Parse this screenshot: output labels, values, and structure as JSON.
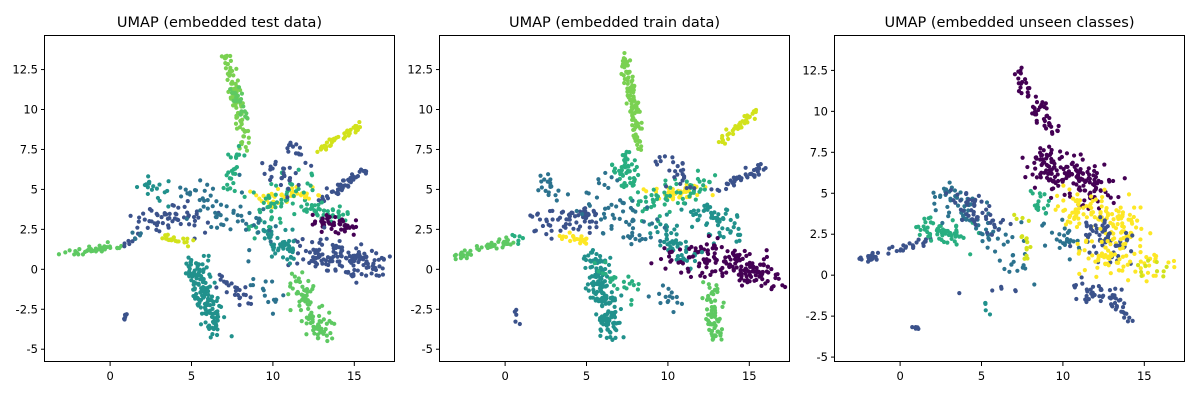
{
  "colors": {
    "viridis": [
      "#440154",
      "#3b528b",
      "#21918c",
      "#5ec962",
      "#7ad151",
      "#fde725"
    ],
    "class_colors": [
      "#440154",
      "#3b528b",
      "#2c728e",
      "#21918c",
      "#28ae80",
      "#5ec962",
      "#7ad151",
      "#d2e21b",
      "#fde725"
    ]
  },
  "chart_data": [
    {
      "type": "scatter",
      "title": "UMAP (embedded test data)",
      "xlim": [
        -4,
        17.5
      ],
      "ylim": [
        -5.8,
        14.6
      ],
      "xticks": [
        0,
        5,
        10,
        15
      ],
      "yticks": [
        -5.0,
        -2.5,
        0.0,
        2.5,
        5.0,
        7.5,
        10.0,
        12.5
      ],
      "grid": false,
      "legend": "none",
      "clusters": [
        {
          "x": [
            -3.2,
            0.8
          ],
          "y": [
            0.9,
            1.5
          ],
          "n": 35,
          "spread": 0.12,
          "color": 5
        },
        {
          "x": [
            0.8,
            1.5
          ],
          "y": [
            1.5,
            2.0
          ],
          "n": 6,
          "spread": 0.15,
          "color": 1
        },
        {
          "x": [
            1.5,
            2.1
          ],
          "y": [
            2.0,
            2.4
          ],
          "n": 5,
          "spread": 0.15,
          "color": 2
        },
        {
          "x": [
            7.1,
            8.4
          ],
          "y": [
            13.4,
            7.5
          ],
          "n": 90,
          "spread": 0.18,
          "color": 6
        },
        {
          "x": [
            7.6,
            8.3
          ],
          "y": [
            11.5,
            9.5
          ],
          "n": 25,
          "spread": 0.15,
          "color": 5
        },
        {
          "x": [
            7.8,
            7.4
          ],
          "y": [
            7.5,
            5.0
          ],
          "n": 25,
          "spread": 0.25,
          "color": 4
        },
        {
          "x": [
            12.8,
            15.4
          ],
          "y": [
            7.5,
            9.0
          ],
          "n": 40,
          "spread": 0.12,
          "color": 7
        },
        {
          "x": [
            13.0,
            15.8
          ],
          "y": [
            4.3,
            6.3
          ],
          "n": 45,
          "spread": 0.18,
          "color": 1
        },
        {
          "x": [
            12.0,
            14.5
          ],
          "y": [
            4.0,
            3.2
          ],
          "n": 40,
          "spread": 0.3,
          "color": 4
        },
        {
          "x": [
            12.5,
            15.0
          ],
          "y": [
            3.0,
            2.8
          ],
          "n": 45,
          "spread": 0.25,
          "color": 0
        },
        {
          "x": [
            12.0,
            16.5
          ],
          "y": [
            1.0,
            0.2
          ],
          "n": 140,
          "spread": 0.5,
          "color": 1
        },
        {
          "x": [
            11.5,
            13.0
          ],
          "y": [
            -0.5,
            -4.4
          ],
          "n": 90,
          "spread": 0.35,
          "color": 5
        },
        {
          "x": [
            5.2,
            6.6
          ],
          "y": [
            0.5,
            -4.1
          ],
          "n": 150,
          "spread": 0.35,
          "color": 3
        },
        {
          "x": [
            6.5,
            8.5
          ],
          "y": [
            -0.5,
            -2.0
          ],
          "n": 25,
          "spread": 0.3,
          "color": 1
        },
        {
          "x": [
            9.5,
            11.5
          ],
          "y": [
            2.5,
            0.5
          ],
          "n": 55,
          "spread": 0.4,
          "color": 3
        },
        {
          "x": [
            9.0,
            12.5
          ],
          "y": [
            4.5,
            4.8
          ],
          "n": 40,
          "spread": 0.3,
          "color": 8
        },
        {
          "x": [
            8.5,
            12.0
          ],
          "y": [
            3.0,
            5.5
          ],
          "n": 60,
          "spread": 0.6,
          "color": 4
        },
        {
          "x": [
            2.0,
            5.5
          ],
          "y": [
            3.0,
            3.2
          ],
          "n": 55,
          "spread": 0.45,
          "color": 1
        },
        {
          "x": [
            2.0,
            3.5
          ],
          "y": [
            5.5,
            4.5
          ],
          "n": 20,
          "spread": 0.3,
          "color": 3
        },
        {
          "x": [
            3.2,
            5.0
          ],
          "y": [
            2.0,
            1.7
          ],
          "n": 20,
          "spread": 0.2,
          "color": 7
        },
        {
          "x": [
            5.0,
            9.5
          ],
          "y": [
            5.0,
            2.0
          ],
          "n": 60,
          "spread": 0.7,
          "color": 2
        },
        {
          "x": [
            9.5,
            11.5
          ],
          "y": [
            7.0,
            5.0
          ],
          "n": 25,
          "spread": 0.4,
          "color": 1
        },
        {
          "x": [
            11.0,
            12.3
          ],
          "y": [
            8.0,
            6.5
          ],
          "n": 15,
          "spread": 0.2,
          "color": 1
        },
        {
          "x": [
            1.0,
            0.9
          ],
          "y": [
            -2.8,
            -3.1
          ],
          "n": 6,
          "spread": 0.08,
          "color": 1
        },
        {
          "x": [
            9.0,
            10.5
          ],
          "y": [
            -1.0,
            -2.5
          ],
          "n": 15,
          "spread": 0.3,
          "color": 2
        }
      ]
    },
    {
      "type": "scatter",
      "title": "UMAP (embedded train data)",
      "xlim": [
        -4,
        17.5
      ],
      "ylim": [
        -5.8,
        14.6
      ],
      "xticks": [
        0,
        5,
        10,
        15
      ],
      "yticks": [
        -5.0,
        -2.5,
        0.0,
        2.5,
        5.0,
        7.5,
        10.0,
        12.5
      ],
      "grid": false,
      "legend": "none",
      "clusters": [
        {
          "x": [
            -3.2,
            0.5
          ],
          "y": [
            0.8,
            1.8
          ],
          "n": 45,
          "spread": 0.12,
          "color": 5
        },
        {
          "x": [
            0.5,
            1.2
          ],
          "y": [
            1.8,
            2.0
          ],
          "n": 6,
          "spread": 0.15,
          "color": 4
        },
        {
          "x": [
            7.3,
            8.3
          ],
          "y": [
            13.4,
            7.5
          ],
          "n": 110,
          "spread": 0.18,
          "color": 6
        },
        {
          "x": [
            7.6,
            7.8
          ],
          "y": [
            7.5,
            5.0
          ],
          "n": 25,
          "spread": 0.3,
          "color": 4
        },
        {
          "x": [
            13.2,
            15.5
          ],
          "y": [
            8.0,
            10.0
          ],
          "n": 40,
          "spread": 0.12,
          "color": 7
        },
        {
          "x": [
            13.0,
            15.8
          ],
          "y": [
            5.0,
            6.4
          ],
          "n": 40,
          "spread": 0.18,
          "color": 1
        },
        {
          "x": [
            11.5,
            14.5
          ],
          "y": [
            4.0,
            2.0
          ],
          "n": 60,
          "spread": 0.5,
          "color": 3
        },
        {
          "x": [
            12.0,
            16.5
          ],
          "y": [
            1.0,
            -0.5
          ],
          "n": 150,
          "spread": 0.5,
          "color": 0
        },
        {
          "x": [
            12.5,
            13.0
          ],
          "y": [
            -1.0,
            -4.4
          ],
          "n": 70,
          "spread": 0.3,
          "color": 5
        },
        {
          "x": [
            5.5,
            6.5
          ],
          "y": [
            1.0,
            -4.0
          ],
          "n": 170,
          "spread": 0.35,
          "color": 3
        },
        {
          "x": [
            6.0,
            8.0
          ],
          "y": [
            0.0,
            -1.5
          ],
          "n": 25,
          "spread": 0.3,
          "color": 4
        },
        {
          "x": [
            9.5,
            11.5
          ],
          "y": [
            2.5,
            0.5
          ],
          "n": 55,
          "spread": 0.4,
          "color": 3
        },
        {
          "x": [
            9.0,
            12.0
          ],
          "y": [
            4.6,
            4.9
          ],
          "n": 45,
          "spread": 0.25,
          "color": 8
        },
        {
          "x": [
            8.5,
            12.5
          ],
          "y": [
            4.0,
            5.5
          ],
          "n": 60,
          "spread": 0.6,
          "color": 4
        },
        {
          "x": [
            2.0,
            5.5
          ],
          "y": [
            2.8,
            3.2
          ],
          "n": 65,
          "spread": 0.4,
          "color": 1
        },
        {
          "x": [
            2.0,
            3.5
          ],
          "y": [
            5.5,
            4.8
          ],
          "n": 20,
          "spread": 0.3,
          "color": 2
        },
        {
          "x": [
            3.5,
            5.0
          ],
          "y": [
            2.0,
            1.8
          ],
          "n": 20,
          "spread": 0.15,
          "color": 8
        },
        {
          "x": [
            5.0,
            9.0
          ],
          "y": [
            5.0,
            2.0
          ],
          "n": 60,
          "spread": 0.7,
          "color": 2
        },
        {
          "x": [
            7.0,
            8.5
          ],
          "y": [
            6.5,
            4.5
          ],
          "n": 25,
          "spread": 0.5,
          "color": 4
        },
        {
          "x": [
            9.5,
            11.5
          ],
          "y": [
            7.0,
            5.5
          ],
          "n": 25,
          "spread": 0.4,
          "color": 1
        },
        {
          "x": [
            9.5,
            12.0
          ],
          "y": [
            1.0,
            0.0
          ],
          "n": 25,
          "spread": 0.5,
          "color": 0
        },
        {
          "x": [
            0.6,
            0.8
          ],
          "y": [
            -2.5,
            -3.5
          ],
          "n": 5,
          "spread": 0.08,
          "color": 1
        },
        {
          "x": [
            9.0,
            11.0
          ],
          "y": [
            -1.0,
            -2.5
          ],
          "n": 15,
          "spread": 0.3,
          "color": 2
        }
      ]
    },
    {
      "type": "scatter",
      "title": "UMAP (embedded unseen classes)",
      "xlim": [
        -4,
        17.5
      ],
      "ylim": [
        -5.3,
        14.6
      ],
      "xticks": [
        0,
        5,
        10,
        15
      ],
      "yticks": [
        -5.0,
        -2.5,
        0.0,
        2.5,
        5.0,
        7.5,
        10.0,
        12.5
      ],
      "grid": false,
      "legend": "none",
      "clusters": [
        {
          "x": [
            -2.5,
            2.0
          ],
          "y": [
            0.9,
            2.2
          ],
          "n": 40,
          "spread": 0.15,
          "color": 1
        },
        {
          "x": [
            1.5,
            4.0
          ],
          "y": [
            2.8,
            2.4
          ],
          "n": 60,
          "spread": 0.45,
          "color": 4
        },
        {
          "x": [
            2.5,
            6.5
          ],
          "y": [
            5.0,
            2.0
          ],
          "n": 70,
          "spread": 0.6,
          "color": 2
        },
        {
          "x": [
            3.5,
            6.0
          ],
          "y": [
            4.5,
            3.0
          ],
          "n": 55,
          "spread": 0.5,
          "color": 1
        },
        {
          "x": [
            6.0,
            7.5
          ],
          "y": [
            1.5,
            0.0
          ],
          "n": 15,
          "spread": 0.4,
          "color": 2
        },
        {
          "x": [
            7.0,
            9.5
          ],
          "y": [
            12.5,
            8.5
          ],
          "n": 55,
          "spread": 0.25,
          "color": 0
        },
        {
          "x": [
            8.5,
            12.5
          ],
          "y": [
            7.0,
            5.0
          ],
          "n": 170,
          "spread": 0.6,
          "color": 0
        },
        {
          "x": [
            9.0,
            11.0
          ],
          "y": [
            3.0,
            1.5
          ],
          "n": 25,
          "spread": 0.5,
          "color": 2
        },
        {
          "x": [
            10.0,
            14.5
          ],
          "y": [
            4.5,
            3.0
          ],
          "n": 120,
          "spread": 0.6,
          "color": 8
        },
        {
          "x": [
            11.0,
            14.0
          ],
          "y": [
            3.0,
            1.5
          ],
          "n": 60,
          "spread": 0.6,
          "color": 1
        },
        {
          "x": [
            11.5,
            15.5
          ],
          "y": [
            1.5,
            0.5
          ],
          "n": 80,
          "spread": 0.6,
          "color": 8
        },
        {
          "x": [
            10.5,
            13.5
          ],
          "y": [
            -1.0,
            -1.5
          ],
          "n": 40,
          "spread": 0.3,
          "color": 1
        },
        {
          "x": [
            13.0,
            14.0
          ],
          "y": [
            -1.5,
            -2.7
          ],
          "n": 15,
          "spread": 0.15,
          "color": 1
        },
        {
          "x": [
            7.5,
            8.0
          ],
          "y": [
            3.5,
            1.0
          ],
          "n": 15,
          "spread": 0.25,
          "color": 7
        },
        {
          "x": [
            8.0,
            9.0
          ],
          "y": [
            4.0,
            5.0
          ],
          "n": 15,
          "spread": 0.4,
          "color": 4
        },
        {
          "x": [
            5.3,
            5.6
          ],
          "y": [
            -1.5,
            -2.5
          ],
          "n": 5,
          "spread": 0.1,
          "color": 3
        },
        {
          "x": [
            0.7,
            1.2
          ],
          "y": [
            -3.1,
            -3.3
          ],
          "n": 6,
          "spread": 0.06,
          "color": 1
        },
        {
          "x": [
            4.0,
            7.0
          ],
          "y": [
            -1.0,
            -1.0
          ],
          "n": 6,
          "spread": 0.2,
          "color": 1
        },
        {
          "x": [
            14.5,
            16.5
          ],
          "y": [
            0.5,
            0.0
          ],
          "n": 10,
          "spread": 0.3,
          "color": 7
        }
      ]
    }
  ]
}
